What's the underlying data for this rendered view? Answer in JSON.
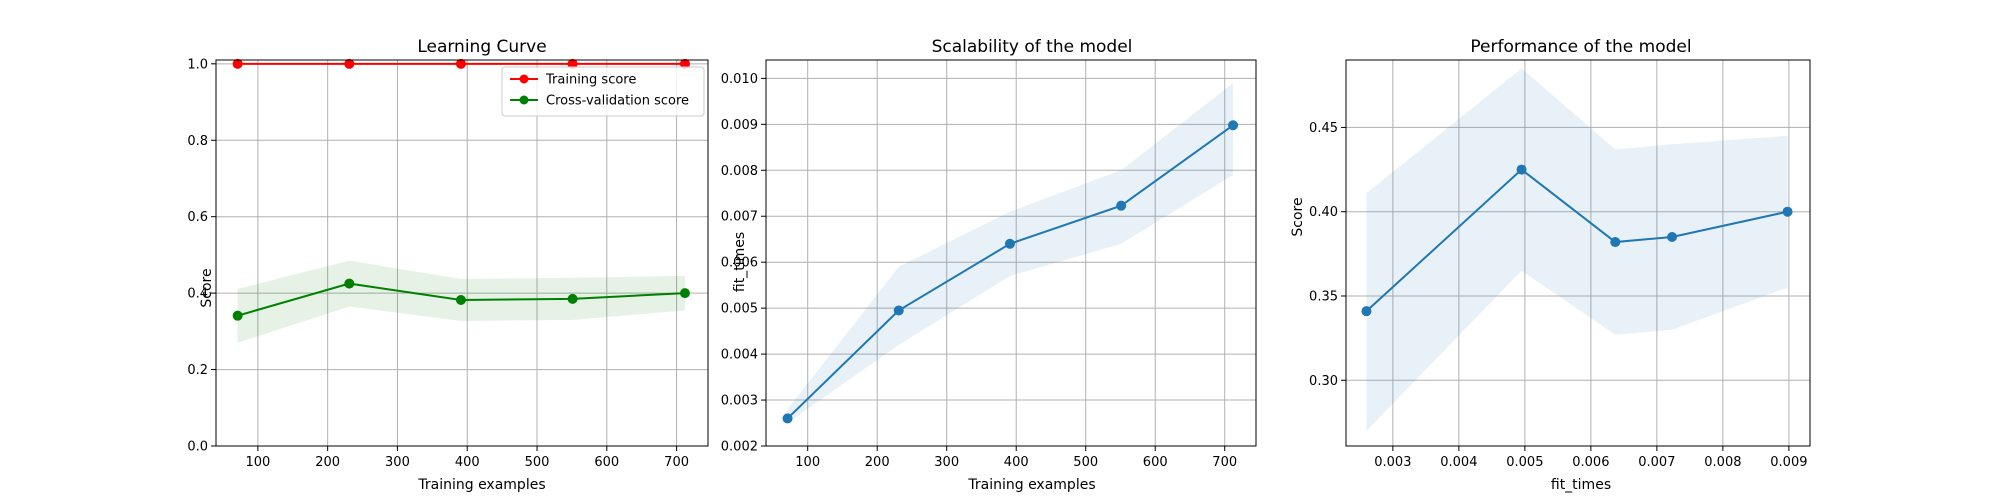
{
  "colors": {
    "training": "#ff0000",
    "cv": "#008000",
    "blue": "#1f77b4",
    "cv_band": "#008000",
    "blue_band": "#1f77b4",
    "grid": "#b0b0b0"
  },
  "chart_data": [
    {
      "type": "line",
      "title": "Learning Curve",
      "xlabel": "Training examples",
      "ylabel": "Score",
      "xlim": [
        40,
        745
      ],
      "ylim": [
        0.0,
        1.01
      ],
      "xticks": [
        100,
        200,
        300,
        400,
        500,
        600,
        700
      ],
      "xtick_labels": [
        "100",
        "200",
        "300",
        "400",
        "500",
        "600",
        "700"
      ],
      "yticks": [
        0.0,
        0.2,
        0.4,
        0.6,
        0.8,
        1.0
      ],
      "ytick_labels": [
        "0.0",
        "0.2",
        "0.4",
        "0.6",
        "0.8",
        "1.0"
      ],
      "grid": true,
      "legend": "top-right",
      "x": [
        71,
        231,
        391,
        551,
        712
      ],
      "series": [
        {
          "name": "Training score",
          "color_key": "training",
          "marker": "o",
          "values": [
            1.0,
            1.0,
            1.0,
            1.0,
            1.0
          ],
          "lower": [
            1.0,
            1.0,
            1.0,
            1.0,
            1.0
          ],
          "upper": [
            1.0,
            1.0,
            1.0,
            1.0,
            1.0
          ]
        },
        {
          "name": "Cross-validation score",
          "color_key": "cv",
          "marker": "o",
          "values": [
            0.341,
            0.425,
            0.382,
            0.385,
            0.4
          ],
          "lower": [
            0.27,
            0.365,
            0.327,
            0.33,
            0.355
          ],
          "upper": [
            0.411,
            0.485,
            0.437,
            0.44,
            0.445
          ]
        }
      ]
    },
    {
      "type": "line",
      "title": "Scalability of the model",
      "xlabel": "Training examples",
      "ylabel": "fit_times",
      "xlim": [
        40,
        745
      ],
      "ylim": [
        0.002,
        0.0104
      ],
      "xticks": [
        100,
        200,
        300,
        400,
        500,
        600,
        700
      ],
      "xtick_labels": [
        "100",
        "200",
        "300",
        "400",
        "500",
        "600",
        "700"
      ],
      "yticks": [
        0.002,
        0.003,
        0.004,
        0.005,
        0.006,
        0.007,
        0.008,
        0.009,
        0.01
      ],
      "ytick_labels": [
        "0.002",
        "0.003",
        "0.004",
        "0.005",
        "0.006",
        "0.007",
        "0.008",
        "0.009",
        "0.010"
      ],
      "grid": true,
      "x": [
        71,
        231,
        391,
        551,
        712
      ],
      "series": [
        {
          "color_key": "blue",
          "marker": "o",
          "values": [
            0.0026,
            0.00495,
            0.0064,
            0.00723,
            0.00898
          ],
          "lower": [
            0.0025,
            0.0042,
            0.0057,
            0.0064,
            0.0079
          ],
          "upper": [
            0.0028,
            0.0059,
            0.0071,
            0.008,
            0.0099
          ]
        }
      ]
    },
    {
      "type": "line",
      "title": "Performance of the model",
      "xlabel": "fit_times",
      "ylabel": "Score",
      "xlim": [
        0.00229,
        0.00932
      ],
      "ylim": [
        0.261,
        0.49
      ],
      "xticks": [
        0.003,
        0.004,
        0.005,
        0.006,
        0.007,
        0.008,
        0.009
      ],
      "xtick_labels": [
        "0.003",
        "0.004",
        "0.005",
        "0.006",
        "0.007",
        "0.008",
        "0.009"
      ],
      "yticks": [
        0.3,
        0.35,
        0.4,
        0.45
      ],
      "ytick_labels": [
        "0.30",
        "0.35",
        "0.40",
        "0.45"
      ],
      "grid": true,
      "x": [
        0.0026,
        0.00495,
        0.00637,
        0.00723,
        0.00898
      ],
      "series": [
        {
          "color_key": "blue",
          "marker": "o",
          "values": [
            0.341,
            0.425,
            0.382,
            0.385,
            0.4
          ],
          "lower": [
            0.27,
            0.365,
            0.327,
            0.33,
            0.355
          ],
          "upper": [
            0.411,
            0.485,
            0.437,
            0.44,
            0.445
          ]
        }
      ]
    }
  ]
}
